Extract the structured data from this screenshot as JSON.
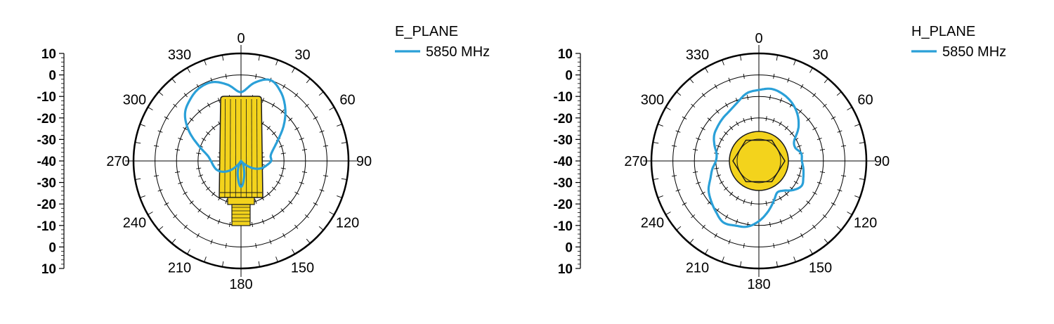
{
  "chart_data": [
    {
      "type": "polar-line",
      "title": "E_PLANE",
      "legend_title": "E_PLANE",
      "series": [
        {
          "name": "5850 MHz",
          "color": "#2aa0d8",
          "angle_deg": [
            0,
            10,
            20,
            30,
            40,
            50,
            60,
            70,
            80,
            90,
            100,
            110,
            120,
            130,
            140,
            150,
            160,
            170,
            180,
            190,
            200,
            210,
            220,
            230,
            240,
            250,
            260,
            270,
            280,
            290,
            300,
            310,
            320,
            330,
            340,
            350
          ],
          "gain_db": [
            -8,
            -3,
            0,
            -3,
            -8,
            -14,
            -20,
            -24,
            -26,
            -26,
            -28,
            -30,
            -33,
            -37,
            -40,
            -38,
            -36,
            -32,
            -28,
            -32,
            -36,
            -40,
            -37,
            -33,
            -30,
            -28,
            -27,
            -26,
            -24,
            -19,
            -12,
            -6,
            -3,
            -1,
            -1,
            -4
          ]
        }
      ],
      "r_ticks": [
        "10",
        "0",
        "-10",
        "-20",
        "-30",
        "-40",
        "-30",
        "-20",
        "-10",
        "0",
        "10"
      ],
      "angle_labels": [
        "0",
        "30",
        "60",
        "90",
        "120",
        "150",
        "180",
        "210",
        "240",
        "270",
        "300",
        "330"
      ],
      "rlim": [
        -40,
        10
      ],
      "grid": true,
      "legend_position": "top-right",
      "icon": "antenna-side-icon"
    },
    {
      "type": "polar-line",
      "title": "H_PLANE",
      "legend_title": "H_PLANE",
      "series": [
        {
          "name": "5850 MHz",
          "color": "#2aa0d8",
          "angle_deg": [
            0,
            10,
            20,
            30,
            40,
            50,
            60,
            70,
            80,
            90,
            100,
            110,
            120,
            130,
            140,
            150,
            160,
            170,
            180,
            190,
            200,
            210,
            220,
            230,
            240,
            250,
            260,
            270,
            280,
            290,
            300,
            310,
            320,
            330,
            340,
            350
          ],
          "gain_db": [
            -7,
            -6,
            -7,
            -9,
            -12,
            -16,
            -21,
            -22,
            -20,
            -20,
            -19,
            -18,
            -17,
            -19,
            -22,
            -23,
            -20,
            -16,
            -12,
            -9,
            -8,
            -7,
            -9,
            -11,
            -13,
            -16,
            -18,
            -20,
            -20,
            -18,
            -16,
            -15,
            -14,
            -13,
            -11,
            -8
          ]
        }
      ],
      "r_ticks": [
        "10",
        "0",
        "-10",
        "-20",
        "-30",
        "-40",
        "-30",
        "-20",
        "-10",
        "0",
        "10"
      ],
      "angle_labels": [
        "0",
        "30",
        "60",
        "90",
        "120",
        "150",
        "180",
        "210",
        "240",
        "270",
        "300",
        "330"
      ],
      "rlim": [
        -40,
        10
      ],
      "grid": true,
      "legend_position": "top-right",
      "icon": "antenna-top-icon"
    }
  ]
}
